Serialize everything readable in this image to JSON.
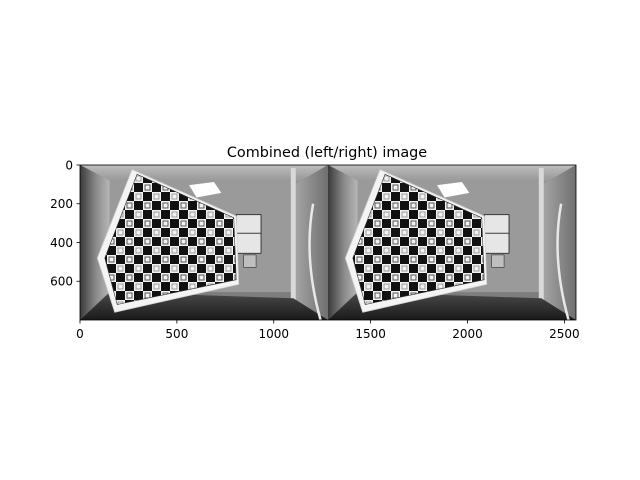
{
  "chart_data": {
    "type": "image",
    "title": "Combined (left/right) image",
    "xlabel": "",
    "ylabel": "",
    "xlim": [
      0,
      2560
    ],
    "ylim": [
      800,
      0
    ],
    "x_ticks": [
      0,
      500,
      1000,
      1500,
      2000,
      2500
    ],
    "y_ticks": [
      0,
      200,
      400,
      600
    ],
    "image": {
      "colormap": "gray",
      "width": 2560,
      "height": 800,
      "panels": [
        {
          "name": "left",
          "x_range": [
            0,
            1280
          ]
        },
        {
          "name": "right",
          "x_range": [
            1280,
            2560
          ]
        }
      ]
    },
    "grid": false,
    "legend": "none"
  }
}
